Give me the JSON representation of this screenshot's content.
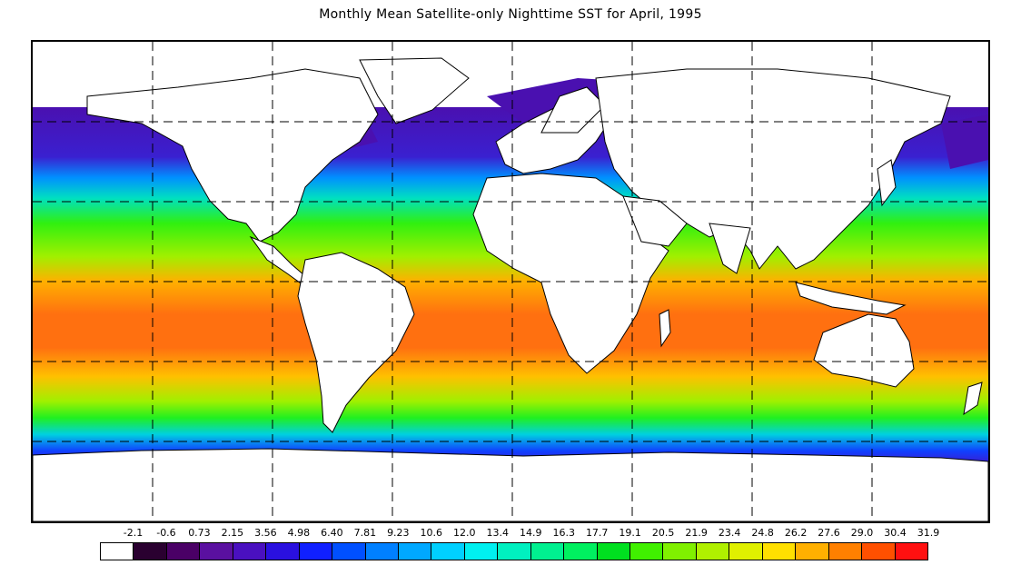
{
  "title": "Monthly Mean Satellite-only Nighttime SST for April, 1995",
  "map": {
    "projection": "equirectangular",
    "variable": "sea surface temperature",
    "grid_lines": "dashed",
    "land_color": "#ffffff"
  },
  "legend": {
    "labels": [
      "-2.1",
      "-0.6",
      "0.73",
      "2.15",
      "3.56",
      "4.98",
      "6.40",
      "7.81",
      "9.23",
      "10.6",
      "12.0",
      "13.4",
      "14.9",
      "16.3",
      "17.7",
      "19.1",
      "20.5",
      "21.9",
      "23.4",
      "24.8",
      "26.2",
      "27.6",
      "29.0",
      "30.4",
      "31.9"
    ],
    "colors": [
      "#ffffff",
      "#2a0030",
      "#4a0066",
      "#5a10a0",
      "#4a10c0",
      "#2a10e0",
      "#1020ff",
      "#0050ff",
      "#0080ff",
      "#00a8ff",
      "#00d0ff",
      "#00f0f0",
      "#00f0c0",
      "#00f090",
      "#00f060",
      "#00e020",
      "#40f000",
      "#80f000",
      "#b0f000",
      "#e0f000",
      "#ffe000",
      "#ffb000",
      "#ff8000",
      "#ff5000",
      "#ff1010"
    ]
  }
}
